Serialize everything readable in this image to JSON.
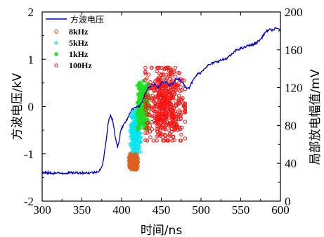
{
  "chart_data": {
    "type": "line+scatter",
    "xlabel": "时间/ns",
    "ylabel_left": "方波电压/kV",
    "ylabel_right": "局部放电幅值/mV",
    "xlim": [
      300,
      600
    ],
    "ylim_left": [
      -2,
      2
    ],
    "ylim_right": [
      0,
      200
    ],
    "x_ticks": [
      "300",
      "350",
      "400",
      "450",
      "500",
      "550",
      "600"
    ],
    "y_left_ticks": [
      "-2",
      "-1",
      "0",
      "1",
      "2"
    ],
    "y_right_ticks": [
      "0",
      "40",
      "80",
      "120",
      "160",
      "200"
    ],
    "legend_position": "top-left",
    "line_series": {
      "name": "方波电压",
      "color": "#0000cc",
      "axis": "left",
      "points": [
        [
          300,
          -1.4
        ],
        [
          320,
          -1.41
        ],
        [
          340,
          -1.4
        ],
        [
          360,
          -1.4
        ],
        [
          368,
          -1.39
        ],
        [
          372,
          -1.35
        ],
        [
          376,
          -1.25
        ],
        [
          380,
          -0.8
        ],
        [
          383,
          -0.35
        ],
        [
          386,
          -0.18
        ],
        [
          389,
          -0.3
        ],
        [
          392,
          -0.65
        ],
        [
          395,
          -0.85
        ],
        [
          397,
          -0.72
        ],
        [
          399,
          -0.5
        ],
        [
          402,
          -0.4
        ],
        [
          406,
          -0.3
        ],
        [
          410,
          -0.15
        ],
        [
          414,
          -0.05
        ],
        [
          418,
          0.0
        ],
        [
          422,
          0.0
        ],
        [
          426,
          0.1
        ],
        [
          430,
          0.28
        ],
        [
          434,
          0.4
        ],
        [
          438,
          0.45
        ],
        [
          442,
          0.48
        ],
        [
          446,
          0.4
        ],
        [
          450,
          0.5
        ],
        [
          455,
          0.52
        ],
        [
          460,
          0.45
        ],
        [
          465,
          0.5
        ],
        [
          470,
          0.6
        ],
        [
          475,
          0.55
        ],
        [
          480,
          0.42
        ],
        [
          485,
          0.4
        ],
        [
          490,
          0.55
        ],
        [
          495,
          0.68
        ],
        [
          500,
          0.72
        ],
        [
          505,
          0.82
        ],
        [
          510,
          0.88
        ],
        [
          515,
          0.92
        ],
        [
          520,
          0.95
        ],
        [
          525,
          0.98
        ],
        [
          530,
          1.0
        ],
        [
          535,
          1.05
        ],
        [
          540,
          1.12
        ],
        [
          545,
          1.2
        ],
        [
          550,
          1.23
        ],
        [
          555,
          1.25
        ],
        [
          560,
          1.3
        ],
        [
          565,
          1.3
        ],
        [
          570,
          1.35
        ],
        [
          575,
          1.42
        ],
        [
          580,
          1.55
        ],
        [
          585,
          1.62
        ],
        [
          590,
          1.62
        ],
        [
          595,
          1.65
        ],
        [
          600,
          1.63
        ]
      ]
    },
    "scatter_series": [
      {
        "name": "8kHz",
        "marker": "diamond",
        "color": "#e06020",
        "axis": "right",
        "x_range": [
          410,
          420
        ],
        "y_range": [
          34,
          50
        ],
        "count": 260
      },
      {
        "name": "5kHz",
        "marker": "plus",
        "color": "#00e5ee",
        "axis": "right",
        "x_range": [
          411,
          424
        ],
        "y_range": [
          52,
          96
        ],
        "count": 240
      },
      {
        "name": "1kHz",
        "marker": "star",
        "color": "#22dd22",
        "axis": "right",
        "x_range": [
          420,
          434
        ],
        "y_range": [
          76,
          127
        ],
        "count": 220
      },
      {
        "name": "100Hz",
        "marker": "circle",
        "color": "#ff1010",
        "axis": "right",
        "x_range": [
          430,
          480
        ],
        "y_range": [
          64,
          141
        ],
        "count": 520
      }
    ]
  }
}
